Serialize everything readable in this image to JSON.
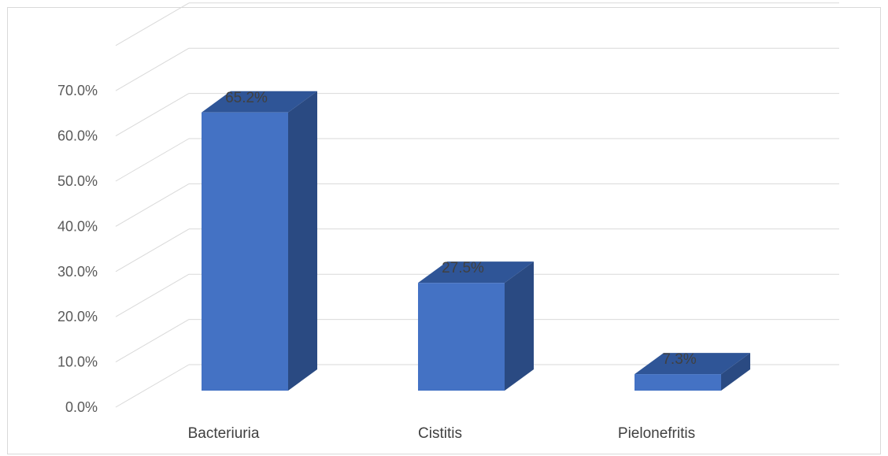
{
  "chart_data": {
    "type": "bar",
    "title": "",
    "xlabel": "",
    "ylabel": "",
    "categories": [
      "Bacteriuria",
      "Cistitis",
      "Pielonefritis"
    ],
    "values": [
      65.2,
      27.5,
      7.3
    ],
    "data_labels": [
      "65.2%",
      "27.5%",
      "7.3%"
    ],
    "ylim": [
      0,
      70
    ],
    "y_ticks": [
      "0.0%",
      "10.0%",
      "20.0%",
      "30.0%",
      "40.0%",
      "50.0%",
      "60.0%",
      "70.0%"
    ],
    "grid": true,
    "legend": "none",
    "style": "3d-column",
    "colors": {
      "front": "#4472c4",
      "side": "#2a4a82",
      "top": "#2f5597",
      "grid": "#d9d9d9"
    }
  }
}
